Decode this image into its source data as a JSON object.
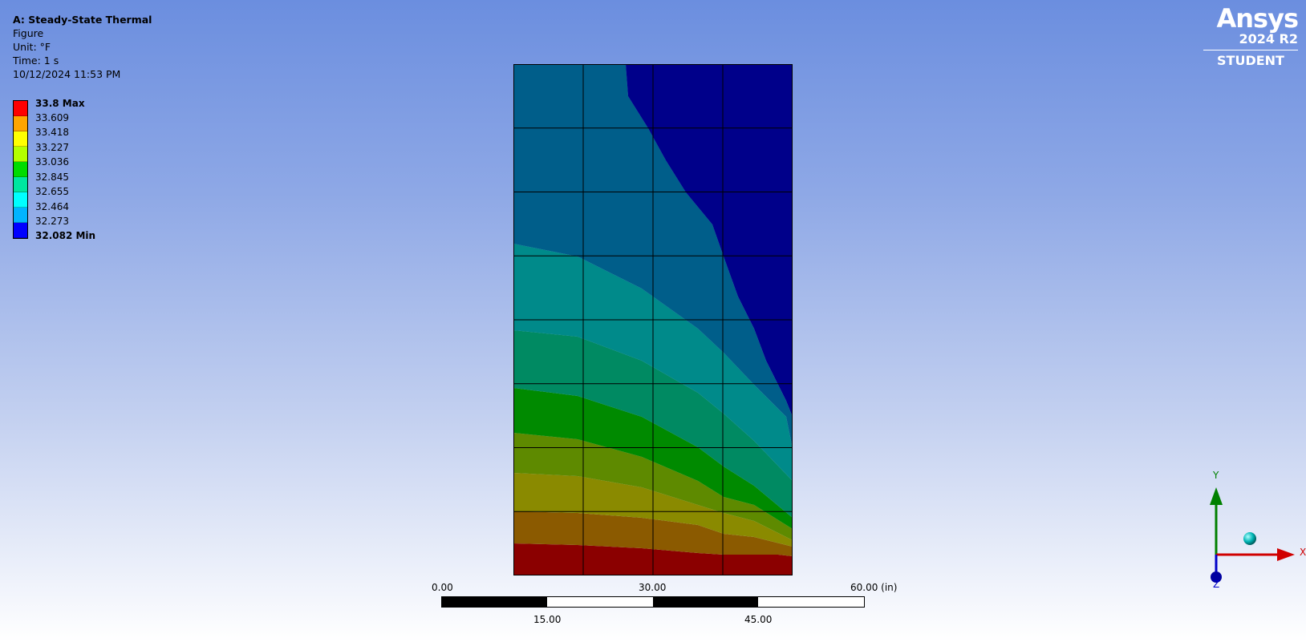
{
  "header": {
    "title": "A: Steady-State Thermal",
    "subtitle": "Figure",
    "unit": "Unit: °F",
    "time": "Time: 1 s",
    "timestamp": "10/12/2024 11:53 PM"
  },
  "legend": {
    "max_label": "33.8 Max",
    "min_label": "32.082 Min",
    "values": [
      "33.609",
      "33.418",
      "33.227",
      "33.036",
      "32.845",
      "32.655",
      "32.464",
      "32.273"
    ],
    "colors": [
      "#ff0000",
      "#ffa500",
      "#ffff00",
      "#b4ff00",
      "#00dc00",
      "#00e6a0",
      "#00ffff",
      "#00b4ff",
      "#0000ff"
    ]
  },
  "branding": {
    "name": "Ansys",
    "version": "2024 R2",
    "edition": "STUDENT"
  },
  "scale_bar": {
    "ticks_top": [
      "0.00",
      "30.00",
      "60.00 (in)"
    ],
    "ticks_bottom": [
      "15.00",
      "45.00"
    ]
  },
  "triad": {
    "x_label": "X",
    "y_label": "Y",
    "z_label": "Z"
  },
  "model": {
    "band_colors": [
      "#8b0000",
      "#8b5a00",
      "#8a8a00",
      "#5e8a00",
      "#008a00",
      "#008a62",
      "#008a8a",
      "#005e8a",
      "#00008a"
    ]
  }
}
